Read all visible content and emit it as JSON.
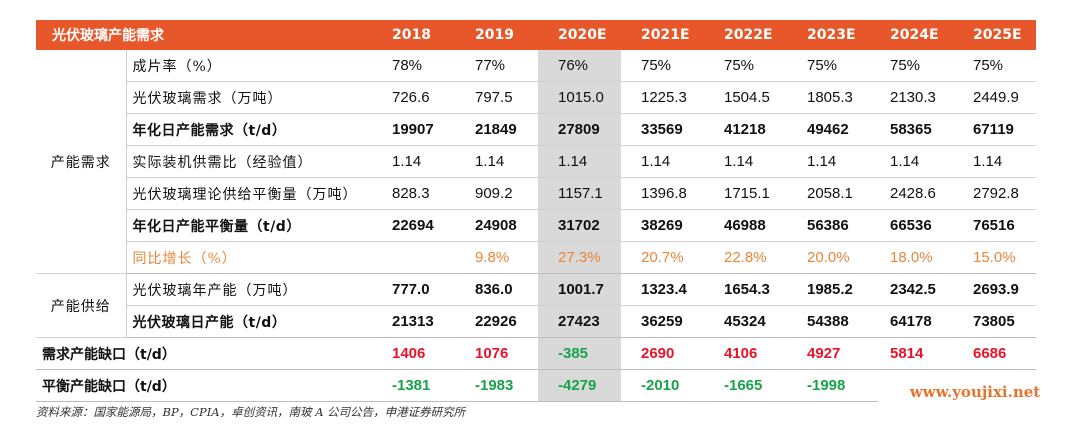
{
  "header": {
    "title": "光伏玻璃产能需求",
    "years": [
      "2018",
      "2019",
      "2020E",
      "2021E",
      "2022E",
      "2023E",
      "2024E",
      "2025E"
    ]
  },
  "groups": {
    "demand": "产能需求",
    "supply": "产能供给"
  },
  "rows": [
    {
      "label": "成片率（%）",
      "values": [
        "78%",
        "77%",
        "76%",
        "75%",
        "75%",
        "75%",
        "75%",
        "75%"
      ]
    },
    {
      "label": "光伏玻璃需求（万吨）",
      "values": [
        "726.6",
        "797.5",
        "1015.0",
        "1225.3",
        "1504.5",
        "1805.3",
        "2130.3",
        "2449.9"
      ]
    },
    {
      "label": "年化日产能需求（t/d）",
      "values": [
        "19907",
        "21849",
        "27809",
        "33569",
        "41218",
        "49462",
        "58365",
        "67119"
      ]
    },
    {
      "label": "实际装机供需比（经验值）",
      "values": [
        "1.14",
        "1.14",
        "1.14",
        "1.14",
        "1.14",
        "1.14",
        "1.14",
        "1.14"
      ]
    },
    {
      "label": "光伏玻璃理论供给平衡量（万吨）",
      "values": [
        "828.3",
        "909.2",
        "1157.1",
        "1396.8",
        "1715.1",
        "2058.1",
        "2428.6",
        "2792.8"
      ]
    },
    {
      "label": "年化日产能平衡量（t/d）",
      "values": [
        "22694",
        "24908",
        "31702",
        "38269",
        "46988",
        "56386",
        "66536",
        "76516"
      ]
    },
    {
      "label": "同比增长（%）",
      "values": [
        "",
        "9.8%",
        "27.3%",
        "20.7%",
        "22.8%",
        "20.0%",
        "18.0%",
        "15.0%"
      ]
    },
    {
      "label": "光伏玻璃年产能（万吨）",
      "values": [
        "777.0",
        "836.0",
        "1001.7",
        "1323.4",
        "1654.3",
        "1985.2",
        "2342.5",
        "2693.9"
      ]
    },
    {
      "label": "光伏玻璃日产能（t/d）",
      "values": [
        "21313",
        "22926",
        "27423",
        "36259",
        "45324",
        "54388",
        "64178",
        "73805"
      ]
    },
    {
      "label": "需求产能缺口（t/d）",
      "values": [
        "1406",
        "1076",
        "-385",
        "2690",
        "4106",
        "4927",
        "5814",
        "6686"
      ]
    },
    {
      "label": "平衡产能缺口（t/d）",
      "values": [
        "-1381",
        "-1983",
        "-4279",
        "-2010",
        "-1665",
        "-1998",
        "",
        ""
      ]
    }
  ],
  "colors": {
    "header_bg": "#e8572a",
    "highlight_col": "#d9d9d9",
    "growth_text": "#e8863a",
    "positive_gap": "#e8122a",
    "negative_gap": "#16a34a"
  },
  "source_note": "资料来源：国家能源局，BP，CPIA，卓创资讯，南玻 A 公司公告，申港证券研究所",
  "watermark": "www.youjixi.net"
}
